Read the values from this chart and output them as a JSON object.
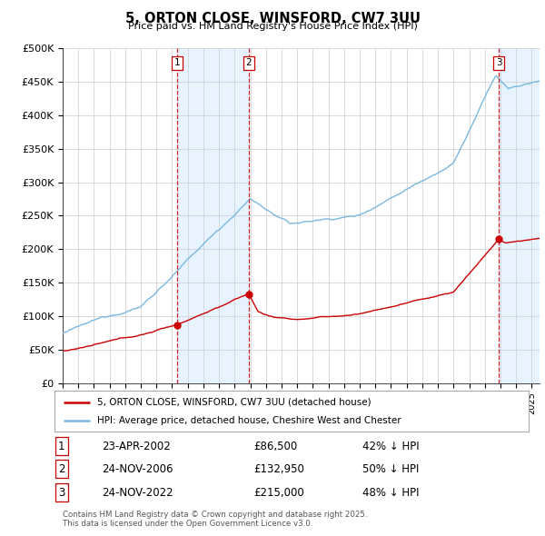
{
  "title": "5, ORTON CLOSE, WINSFORD, CW7 3UU",
  "subtitle": "Price paid vs. HM Land Registry's House Price Index (HPI)",
  "ylabel_ticks": [
    "£0",
    "£50K",
    "£100K",
    "£150K",
    "£200K",
    "£250K",
    "£300K",
    "£350K",
    "£400K",
    "£450K",
    "£500K"
  ],
  "ytick_vals": [
    0,
    50000,
    100000,
    150000,
    200000,
    250000,
    300000,
    350000,
    400000,
    450000,
    500000
  ],
  "ylim": [
    0,
    500000
  ],
  "xlim_start": 1995.0,
  "xlim_end": 2025.5,
  "hpi_color": "#7ab8e0",
  "price_color": "#cc0000",
  "vline_color": "#cc0000",
  "shade_color": "#ddeeff",
  "sale_dates_year": [
    2002.31,
    2006.9,
    2022.9
  ],
  "sale_prices": [
    86500,
    132950,
    215000
  ],
  "sale_labels": [
    "1",
    "2",
    "3"
  ],
  "sale_label_dates": [
    "23-APR-2002",
    "24-NOV-2006",
    "24-NOV-2022"
  ],
  "sale_label_prices": [
    "£86,500",
    "£132,950",
    "£215,000"
  ],
  "sale_label_hpi": [
    "42% ↓ HPI",
    "50% ↓ HPI",
    "48% ↓ HPI"
  ],
  "legend_line1": "5, ORTON CLOSE, WINSFORD, CW7 3UU (detached house)",
  "legend_line2": "HPI: Average price, detached house, Cheshire West and Chester",
  "footer": "Contains HM Land Registry data © Crown copyright and database right 2025.\nThis data is licensed under the Open Government Licence v3.0.",
  "background_color": "#ffffff",
  "plot_background": "#ffffff",
  "grid_color": "#cccccc"
}
